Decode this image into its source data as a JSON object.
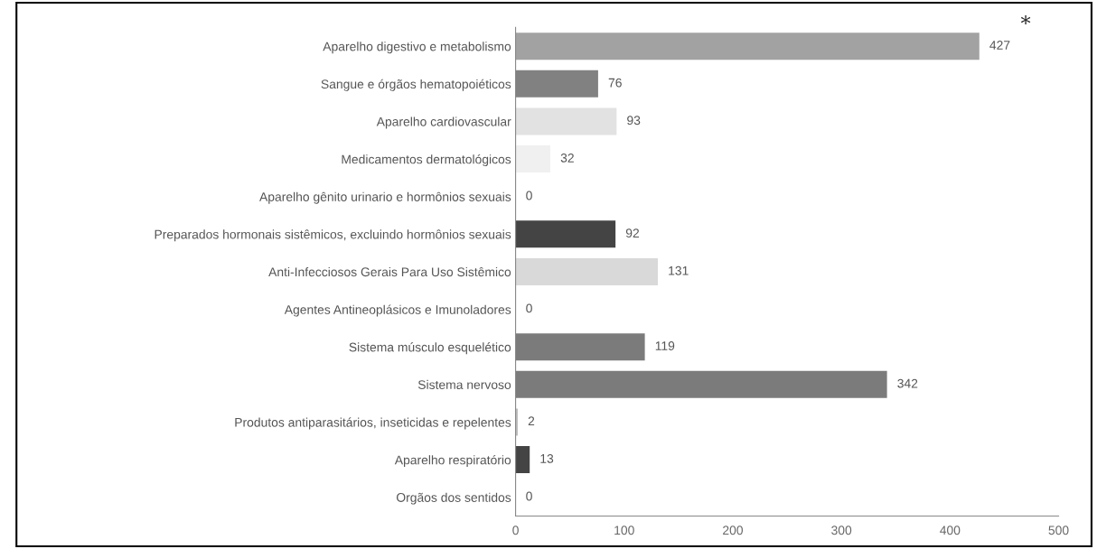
{
  "chart_data": {
    "type": "bar",
    "orientation": "horizontal",
    "categories": [
      "Aparelho digestivo e metabolismo",
      "Sangue e órgãos hematopoiéticos",
      "Aparelho cardiovascular",
      "Medicamentos dermatológicos",
      "Aparelho gênito urinario e hormônios sexuais",
      "Preparados hormonais sistêmicos, excluindo hormônios sexuais",
      "Anti-Infecciosos Gerais Para Uso Sistêmico",
      "Agentes Antineoplásicos e Imunoladores",
      "Sistema músculo esquelético",
      "Sistema nervoso",
      "Produtos antiparasitários, inseticidas e repelentes",
      "Aparelho respiratório",
      "Orgãos dos sentidos"
    ],
    "values": [
      427,
      76,
      93,
      32,
      0,
      92,
      131,
      0,
      119,
      342,
      2,
      13,
      0
    ],
    "colors": [
      "#a2a2a2",
      "#818181",
      "#e2e2e2",
      "#f0f0f0",
      "#cccccc",
      "#444444",
      "#d9d9d9",
      "#cccccc",
      "#7b7b7b",
      "#7b7b7b",
      "#bdbdbd",
      "#444444",
      "#cccccc"
    ],
    "xlim": [
      0,
      500
    ],
    "xticks": [
      0,
      100,
      200,
      300,
      400,
      500
    ],
    "data_labels": true,
    "grid": false,
    "legend": false,
    "annotations": [
      "*"
    ]
  }
}
